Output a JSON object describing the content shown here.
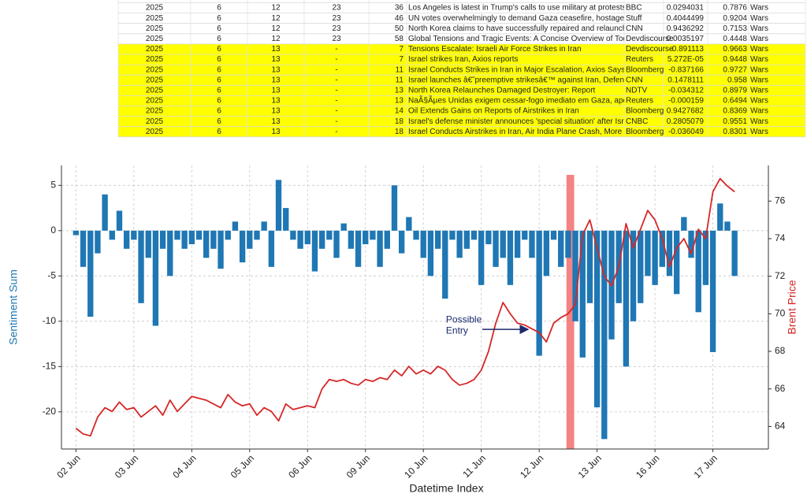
{
  "table": {
    "highlight_color": "#ffff00",
    "rows": [
      {
        "highlight": false,
        "cells": [
          "2025",
          "6",
          "12",
          "23",
          "36",
          "Los Angeles is latest in Trump's calls to use military at protests",
          "BBC",
          "0.0294031",
          "0.7876",
          "Wars"
        ]
      },
      {
        "highlight": false,
        "cells": [
          "2025",
          "6",
          "12",
          "23",
          "46",
          "UN votes overwhelmingly to demand Gaza ceasefire, hostage rele",
          "Stuff",
          "0.4044499",
          "0.9204",
          "Wars"
        ]
      },
      {
        "highlight": false,
        "cells": [
          "2025",
          "6",
          "12",
          "23",
          "50",
          "North Korea claims to have successfully repaired and relaunched",
          "CNN",
          "0.9436292",
          "0.7153",
          "Wars"
        ]
      },
      {
        "highlight": false,
        "cells": [
          "2025",
          "6",
          "12",
          "23",
          "58",
          "Global Tensions and Tragic Events: A Concise Overview of Today's",
          "Devdiscourse",
          "0.0035197",
          "0.4448",
          "Wars"
        ]
      },
      {
        "highlight": true,
        "cells": [
          "2025",
          "6",
          "13",
          "-",
          "7",
          "Tensions Escalate: Israeli Air Force Strikes in Iran",
          "Devdiscourse",
          "-0.891113",
          "0.9663",
          "Wars"
        ]
      },
      {
        "highlight": true,
        "cells": [
          "2025",
          "6",
          "13",
          "-",
          "7",
          "Israel strikes Iran, Axios reports",
          "Reuters",
          "5.272E-05",
          "0.9448",
          "Wars"
        ]
      },
      {
        "highlight": true,
        "cells": [
          "2025",
          "6",
          "13",
          "-",
          "11",
          "Israel Conducts Strikes in Iran in Major Escalation, Axios Says",
          "Bloomberg",
          "-0.837166",
          "0.9727",
          "Wars"
        ]
      },
      {
        "highlight": true,
        "cells": [
          "2025",
          "6",
          "13",
          "-",
          "11",
          "Israel launches â€˜preemptive strikesâ€™ against Iran, Defense M",
          "CNN",
          "0.1478111",
          "0.958",
          "Wars"
        ]
      },
      {
        "highlight": true,
        "cells": [
          "2025",
          "6",
          "13",
          "-",
          "13",
          "North Korea Relaunches Damaged Destroyer: Report",
          "NDTV",
          "-0.034312",
          "0.8979",
          "Wars"
        ]
      },
      {
        "highlight": true,
        "cells": [
          "2025",
          "6",
          "13",
          "-",
          "13",
          "NaÃ§Ãµes Unidas exigem cessar-fogo imediato em Gaza, apesar",
          "Reuters",
          "-0.000159",
          "0.6494",
          "Wars"
        ]
      },
      {
        "highlight": true,
        "cells": [
          "2025",
          "6",
          "13",
          "-",
          "14",
          "Oil Extends Gains on Reports of Airstrikes in Iran",
          "Bloomberg",
          "0.9427682",
          "0.8369",
          "Wars"
        ]
      },
      {
        "highlight": true,
        "cells": [
          "2025",
          "6",
          "13",
          "-",
          "18",
          "Israel's defense minister announces 'special situation' after Israe",
          "CNBC",
          "0.2805079",
          "0.9551",
          "Wars"
        ]
      },
      {
        "highlight": true,
        "cells": [
          "2025",
          "6",
          "13",
          "-",
          "18",
          "Israel Conducts Airstrikes in Iran, Air India Plane Crash, More",
          "Bloomberg",
          "-0.036049",
          "0.8301",
          "Wars"
        ]
      }
    ]
  },
  "chart_data": {
    "type": "combo",
    "x_label": "Datetime Index",
    "y_label": "Sentiment Sum",
    "y2_label": "Brent Price",
    "y_label_color": "#1f77b4",
    "y2_label_color": "#d62728",
    "grid": true,
    "xlim": [
      -6,
      287
    ],
    "ylim": [
      -24.1,
      7.2
    ],
    "y2lim": [
      62.8,
      77.9
    ],
    "xticks": [
      {
        "value": 0,
        "label": "02 Jun"
      },
      {
        "value": 24,
        "label": "03 Jun"
      },
      {
        "value": 48,
        "label": "04 Jun"
      },
      {
        "value": 72,
        "label": "05 Jun"
      },
      {
        "value": 96,
        "label": "06 Jun"
      },
      {
        "value": 120,
        "label": "09 Jun"
      },
      {
        "value": 144,
        "label": "10 Jun"
      },
      {
        "value": 168,
        "label": "11 Jun"
      },
      {
        "value": 192,
        "label": "12 Jun"
      },
      {
        "value": 216,
        "label": "13 Jun"
      },
      {
        "value": 240,
        "label": "16 Jun"
      },
      {
        "value": 264,
        "label": "17 Jun"
      }
    ],
    "yticks": [
      -20,
      -15,
      -10,
      -5,
      0,
      5
    ],
    "y2ticks": [
      64,
      66,
      68,
      70,
      72,
      74,
      76
    ],
    "vspan": {
      "x": [
        203.3,
        206.5
      ],
      "color": "#f26d6d"
    },
    "annotation": {
      "lines": [
        "Possible",
        "Entry"
      ],
      "x": 188,
      "y": -10.9,
      "color": "#1a2a6c"
    },
    "x": [
      0,
      3,
      6,
      9,
      12,
      15,
      18,
      21,
      24,
      27,
      30,
      33,
      36,
      39,
      42,
      45,
      48,
      51,
      54,
      57,
      60,
      63,
      66,
      69,
      72,
      75,
      78,
      81,
      84,
      87,
      90,
      93,
      96,
      99,
      102,
      105,
      108,
      111,
      114,
      117,
      120,
      123,
      126,
      129,
      132,
      135,
      138,
      141,
      144,
      147,
      150,
      153,
      156,
      159,
      162,
      165,
      168,
      171,
      174,
      177,
      180,
      183,
      186,
      189,
      192,
      195,
      198,
      201,
      204,
      207,
      210,
      213,
      216,
      219,
      222,
      225,
      228,
      231,
      234,
      237,
      240,
      243,
      246,
      249,
      252,
      255,
      258,
      261,
      264,
      267,
      270,
      273
    ],
    "series": [
      {
        "name": "Sentiment Sum",
        "type": "bar",
        "axis": "y",
        "color": "#1f77b4",
        "values": [
          -0.5,
          -4,
          -9.5,
          -2.5,
          4,
          -1,
          2.2,
          -2,
          -1,
          -8,
          -3,
          -10.5,
          -2,
          -5,
          -1,
          -2,
          -1.5,
          -1,
          -3,
          -2,
          -4.2,
          -1,
          1,
          -3.5,
          -2,
          -1,
          1,
          -4,
          5.6,
          2.5,
          -1,
          -2,
          -1.5,
          -4.5,
          -2,
          -1,
          -3,
          0.8,
          -2,
          -4,
          -1.5,
          -1,
          -4,
          -2,
          5,
          -2.5,
          1.5,
          -1,
          -3,
          -5,
          -2,
          -7.5,
          -1,
          -3,
          -2,
          -1,
          -6,
          -1.5,
          -4,
          -3,
          -6,
          -3,
          -1,
          -3,
          -13.8,
          -5,
          -1,
          -4,
          -3,
          -10,
          -14,
          -8,
          -19.5,
          -23,
          -12,
          -8,
          -15,
          -10,
          -8,
          -5,
          -6,
          -4,
          -5,
          -7,
          1.5,
          -3,
          -9,
          -6,
          -13.4,
          3,
          1,
          -5
        ]
      },
      {
        "name": "Brent Price",
        "type": "line",
        "axis": "y2",
        "color": "#d62728",
        "values": [
          63.9,
          63.6,
          63.5,
          64.5,
          65.0,
          64.8,
          65.3,
          64.9,
          65.0,
          64.5,
          64.8,
          65.1,
          64.6,
          65.4,
          64.8,
          65.2,
          65.6,
          65.5,
          65.4,
          65.2,
          65.0,
          65.7,
          65.3,
          65.1,
          65.2,
          64.6,
          65.0,
          64.8,
          64.3,
          65.2,
          64.9,
          65.0,
          65.1,
          65.0,
          66.0,
          66.5,
          66.4,
          66.5,
          66.3,
          66.2,
          66.5,
          66.4,
          66.6,
          66.5,
          67.0,
          66.7,
          67.2,
          66.8,
          67.0,
          66.8,
          67.2,
          67.0,
          66.5,
          66.2,
          66.3,
          66.5,
          67.0,
          68.0,
          69.5,
          70.6,
          70.0,
          69.5,
          69.4,
          69.2,
          69.0,
          68.5,
          69.5,
          69.8,
          70.0,
          70.5,
          74.2,
          75.0,
          73.5,
          72.0,
          71.5,
          72.5,
          74.8,
          73.5,
          74.5,
          75.5,
          75.0,
          74.0,
          72.5,
          73.5,
          74.0,
          73.2,
          74.5,
          74.0,
          76.5,
          77.2,
          76.8,
          76.5
        ]
      }
    ]
  }
}
